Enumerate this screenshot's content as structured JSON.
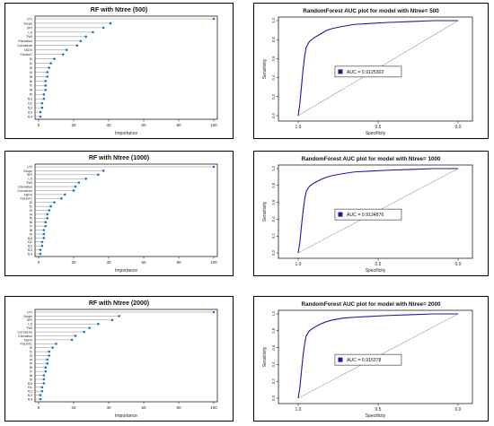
{
  "figure": {
    "panels": [
      {
        "id": "imp500",
        "title": "RF with Ntree (500)",
        "xlabel": "Importance"
      },
      {
        "id": "roc500",
        "title": "RandomForest AUC plot for model with Ntree= 500",
        "xlabel": "Specificity",
        "ylabel": "Sensitivity",
        "auc_label": "AUC = 0.9125302"
      },
      {
        "id": "imp1000",
        "title": "RF with Ntree (1000)",
        "xlabel": "Importance"
      },
      {
        "id": "roc1000",
        "title": "RandomForest AUC plot for model with Ntree= 1000",
        "xlabel": "Specificity",
        "ylabel": "Sensitivity",
        "auc_label": "AUC = 0.9134876"
      },
      {
        "id": "imp2000",
        "title": "RF with Ntree (2000)",
        "xlabel": "Importance"
      },
      {
        "id": "roc2000",
        "title": "RandomForest AUC plot for model with Ntree= 2000",
        "xlabel": "Specificity",
        "ylabel": "Sensitivity",
        "auc_label": "AUC = 0.915378"
      }
    ],
    "colors": {
      "frame": "#000000",
      "point": "#1f77c4",
      "roc": "#1a1aa0",
      "legend_marker": "#1a1aa0",
      "diag": "#9a9a9a"
    }
  },
  "chart_data": [
    {
      "type": "scatter",
      "subtype": "dotchart",
      "title": "RF with Ntree (500)",
      "xlabel": "Importance",
      "xlim": [
        0,
        100
      ],
      "xticks": [
        "0",
        "20",
        "40",
        "60",
        "80",
        "100"
      ],
      "categories": [
        "CTI",
        "Slope",
        "SPI",
        "LS",
        "TWI",
        "Elevation",
        "Curvature",
        "NDVI",
        "FactorC",
        "f2",
        "f1",
        "f3",
        "f4",
        "f5",
        "f6",
        "f7",
        "f8",
        "f9",
        "f10",
        "f11",
        "f12",
        "f13",
        "f14"
      ],
      "values": [
        100,
        41,
        37,
        31,
        27,
        24,
        22,
        16,
        14,
        9,
        7,
        6,
        5,
        5,
        4,
        4,
        4,
        3,
        3,
        2,
        2,
        1,
        1
      ]
    },
    {
      "type": "line",
      "subtype": "roc",
      "title": "RandomForest AUC plot for model with Ntree= 500",
      "xlabel": "Specificity",
      "ylabel": "Sensitivity",
      "xlim": [
        1.0,
        0.0
      ],
      "ylim": [
        0.0,
        1.0
      ],
      "xticks": [
        "1.0",
        "0.5",
        "0.0"
      ],
      "yticks": [
        "0.0",
        "0.2",
        "0.4",
        "0.6",
        "0.8",
        "1.0"
      ],
      "legend": "AUC = 0.9125302",
      "x": [
        1.0,
        0.99,
        0.98,
        0.97,
        0.96,
        0.95,
        0.93,
        0.9,
        0.86,
        0.82,
        0.78,
        0.72,
        0.65,
        0.55,
        0.45,
        0.3,
        0.15,
        0.0
      ],
      "y": [
        0.0,
        0.12,
        0.3,
        0.48,
        0.62,
        0.72,
        0.78,
        0.82,
        0.86,
        0.9,
        0.92,
        0.94,
        0.96,
        0.97,
        0.98,
        0.99,
        1.0,
        1.0
      ]
    },
    {
      "type": "scatter",
      "subtype": "dotchart",
      "title": "RF with Ntree (1000)",
      "xlabel": "Importance",
      "xlim": [
        0,
        100
      ],
      "xticks": [
        "0",
        "20",
        "40",
        "60",
        "80",
        "100"
      ],
      "categories": [
        "CTI",
        "Slope",
        "SPI",
        "LS",
        "TWI",
        "Elevation",
        "Curvature",
        "NDVI",
        "FactorC",
        "f2",
        "f1",
        "f3",
        "f4",
        "f5",
        "f6",
        "f7",
        "f8",
        "f9",
        "f10",
        "f11",
        "f12",
        "f13",
        "f14"
      ],
      "values": [
        100,
        37,
        34,
        27,
        23,
        21,
        20,
        15,
        13,
        9,
        7,
        6,
        5,
        5,
        4,
        4,
        3,
        3,
        3,
        2,
        2,
        1,
        1
      ]
    },
    {
      "type": "line",
      "subtype": "roc",
      "title": "RandomForest AUC plot for model with Ntree= 1000",
      "xlabel": "Specificity",
      "ylabel": "Sensitivity",
      "xlim": [
        1.0,
        0.0
      ],
      "ylim": [
        0.0,
        1.0
      ],
      "xticks": [
        "1.0",
        "0.5",
        "0.0"
      ],
      "yticks": [
        "0.0",
        "0.2",
        "0.4",
        "0.6",
        "0.8",
        "1.0"
      ],
      "legend": "AUC = 0.9134876",
      "x": [
        1.0,
        0.99,
        0.98,
        0.97,
        0.96,
        0.95,
        0.93,
        0.9,
        0.86,
        0.82,
        0.78,
        0.72,
        0.65,
        0.55,
        0.45,
        0.3,
        0.15,
        0.0
      ],
      "y": [
        0.0,
        0.12,
        0.31,
        0.49,
        0.63,
        0.73,
        0.79,
        0.83,
        0.87,
        0.9,
        0.92,
        0.94,
        0.96,
        0.97,
        0.98,
        0.99,
        1.0,
        1.0
      ]
    },
    {
      "type": "scatter",
      "subtype": "dotchart",
      "title": "RF with Ntree (2000)",
      "xlabel": "Importance",
      "xlim": [
        0,
        100
      ],
      "xticks": [
        "0",
        "20",
        "40",
        "60",
        "80",
        "100"
      ],
      "categories": [
        "CTI",
        "Slope",
        "SPI",
        "LS",
        "TWI",
        "Curvature",
        "Elevation",
        "NDVI",
        "FactorC",
        "f2",
        "f1",
        "f3",
        "f4",
        "f5",
        "f6",
        "f7",
        "f8",
        "f9",
        "f10",
        "f11",
        "f12",
        "f13",
        "f14"
      ],
      "values": [
        100,
        46,
        42,
        34,
        29,
        26,
        21,
        19,
        10,
        8,
        6,
        6,
        5,
        5,
        4,
        4,
        3,
        3,
        3,
        2,
        2,
        1,
        1
      ]
    },
    {
      "type": "line",
      "subtype": "roc",
      "title": "RandomForest AUC plot for model with Ntree= 2000",
      "xlabel": "Specificity",
      "ylabel": "Sensitivity",
      "xlim": [
        1.0,
        0.0
      ],
      "ylim": [
        0.0,
        1.0
      ],
      "xticks": [
        "1.0",
        "0.5",
        "0.0"
      ],
      "yticks": [
        "0.0",
        "0.2",
        "0.4",
        "0.6",
        "0.8",
        "1.0"
      ],
      "legend": "AUC = 0.915378",
      "x": [
        1.0,
        0.99,
        0.98,
        0.97,
        0.96,
        0.95,
        0.93,
        0.9,
        0.86,
        0.82,
        0.78,
        0.72,
        0.65,
        0.55,
        0.45,
        0.3,
        0.15,
        0.0
      ],
      "y": [
        0.0,
        0.12,
        0.31,
        0.5,
        0.64,
        0.74,
        0.8,
        0.84,
        0.88,
        0.91,
        0.93,
        0.95,
        0.96,
        0.97,
        0.98,
        0.99,
        1.0,
        1.0
      ]
    }
  ]
}
